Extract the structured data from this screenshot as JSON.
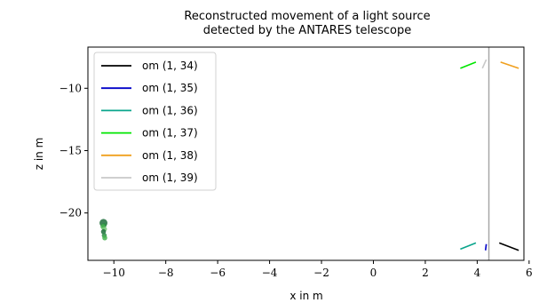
{
  "chart_data": {
    "type": "line",
    "title_lines": [
      "Reconstructed movement of a light source",
      "detected by the ANTARES telescope"
    ],
    "xlabel": "x in m",
    "ylabel": "z in m",
    "xlim": [
      -11.0,
      5.8
    ],
    "ylim": [
      -23.8,
      -6.7
    ],
    "xticks": [
      -10,
      -8,
      -6,
      -4,
      -2,
      0,
      2,
      4,
      6
    ],
    "xtick_labels": [
      "−10",
      "−8",
      "−6",
      "−4",
      "−2",
      "0",
      "2",
      "4",
      "6"
    ],
    "yticks": [
      -10,
      -15,
      -20
    ],
    "ytick_labels": [
      "−10",
      "−15",
      "−20"
    ],
    "grid": false,
    "legend_position": "top-left",
    "vertical_line": {
      "x": 4.45,
      "color": "#a8a8a8"
    },
    "series": [
      {
        "name": "om (1, 34)",
        "color": "#000000",
        "segments": [
          [
            [
              4.85,
              -22.4
            ],
            [
              5.6,
              -23.0
            ]
          ]
        ]
      },
      {
        "name": "om (1, 35)",
        "color": "#0000c8",
        "segments": [
          [
            [
              4.35,
              -22.5
            ],
            [
              4.32,
              -23.0
            ]
          ]
        ]
      },
      {
        "name": "om (1, 36)",
        "color": "#0aa58c",
        "segments": [
          [
            [
              3.35,
              -22.9
            ],
            [
              3.95,
              -22.4
            ]
          ]
        ]
      },
      {
        "name": "om (1, 37)",
        "color": "#00e600",
        "segments": [
          [
            [
              3.35,
              -8.4
            ],
            [
              3.95,
              -7.9
            ]
          ]
        ]
      },
      {
        "name": "om (1, 38)",
        "color": "#f0a01e",
        "segments": [
          [
            [
              4.9,
              -7.9
            ],
            [
              5.6,
              -8.4
            ]
          ]
        ]
      },
      {
        "name": "om (1, 39)",
        "color": "#c8c8c8",
        "segments": [
          [
            [
              4.2,
              -8.4
            ],
            [
              4.35,
              -7.7
            ]
          ]
        ]
      }
    ],
    "cluster": {
      "colors": [
        "#1e6e3c",
        "#2d8c46",
        "#46b450",
        "#78c878"
      ],
      "points": [
        [
          -10.4,
          -20.8
        ],
        [
          -10.38,
          -21.0
        ],
        [
          -10.42,
          -21.1
        ],
        [
          -10.36,
          -21.3
        ],
        [
          -10.4,
          -21.5
        ],
        [
          -10.37,
          -21.8
        ],
        [
          -10.35,
          -22.0
        ]
      ]
    }
  }
}
